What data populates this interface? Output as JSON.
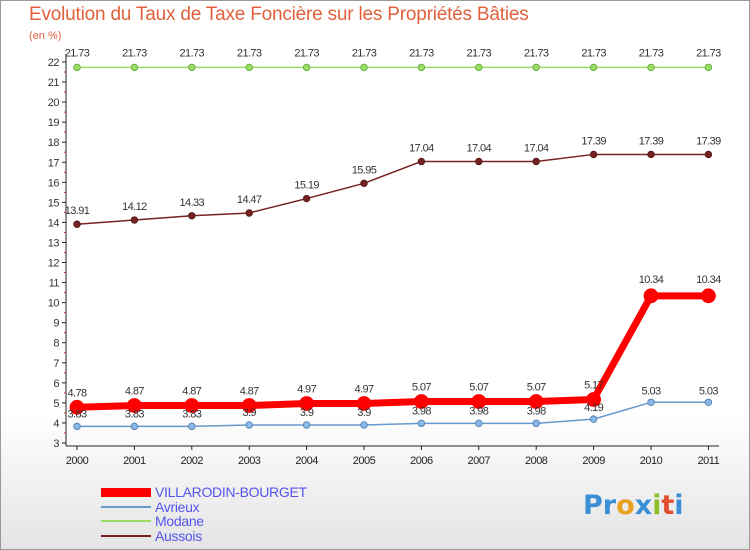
{
  "title": "Evolution du Taux de Taxe Foncière sur les Propriétés Bâties",
  "unit_label": "(en %)",
  "logo": {
    "text": "Proxiti",
    "letters": [
      {
        "char": "P",
        "color": "#3a8fd6"
      },
      {
        "char": "r",
        "color": "#3a8fd6"
      },
      {
        "char": "o",
        "color": "#e8a020"
      },
      {
        "char": "x",
        "color": "#3a8fd6"
      },
      {
        "char": "i",
        "color": "#8fbf2a"
      },
      {
        "char": "t",
        "color": "#e05030"
      },
      {
        "char": "i",
        "color": "#3a8fd6"
      }
    ]
  },
  "chart_data": {
    "type": "line",
    "title": "Evolution du Taux de Taxe Foncière sur les Propriétés Bâties",
    "ylabel": "(en %)",
    "x": [
      "2000",
      "2001",
      "2002",
      "2003",
      "2004",
      "2005",
      "2006",
      "2007",
      "2008",
      "2009",
      "2010",
      "2011"
    ],
    "ylim": [
      3,
      22
    ],
    "yticks": [
      3,
      4,
      5,
      6,
      7,
      8,
      9,
      10,
      11,
      12,
      13,
      14,
      15,
      16,
      17,
      18,
      19,
      20,
      21,
      22
    ],
    "grid": false,
    "legend_position": "bottom-left",
    "series": [
      {
        "name": "VILLARODIN-BOURGET",
        "color": "#ff0000",
        "values": [
          4.78,
          4.87,
          4.87,
          4.87,
          4.97,
          4.97,
          5.07,
          5.07,
          5.07,
          5.17,
          10.34,
          10.34
        ]
      },
      {
        "name": "Avrieux",
        "color": "#6699cc",
        "values": [
          3.83,
          3.83,
          3.83,
          3.9,
          3.9,
          3.9,
          3.98,
          3.98,
          3.98,
          4.19,
          5.03,
          5.03
        ]
      },
      {
        "name": "Modane",
        "color": "#99dd66",
        "values": [
          21.73,
          21.73,
          21.73,
          21.73,
          21.73,
          21.73,
          21.73,
          21.73,
          21.73,
          21.73,
          21.73,
          21.73
        ]
      },
      {
        "name": "Aussois",
        "color": "#772222",
        "values": [
          13.91,
          14.12,
          14.33,
          14.47,
          15.19,
          15.95,
          17.04,
          17.04,
          17.04,
          17.39,
          17.39,
          17.39
        ]
      }
    ],
    "data_labels": [
      {
        "series": "VILLARODIN-BOURGET",
        "texts": [
          "4.78",
          "4.87",
          "4.87",
          "4.87",
          "4.97",
          "4.97",
          "5.07",
          "5.07",
          "5.07",
          "5.17",
          "10.34",
          "10.34"
        ]
      },
      {
        "series": "Avrieux",
        "texts": [
          "3.83",
          "3.83",
          "3.83",
          "3.9",
          "3.9",
          "3.9",
          "3.98",
          "3.98",
          "3.98",
          "4.19",
          "5.03",
          "5.03"
        ]
      },
      {
        "series": "Modane",
        "texts": [
          "21.73",
          "21.73",
          "21.73",
          "21.73",
          "21.73",
          "21.73",
          "21.73",
          "21.73",
          "21.73",
          "21.73",
          "21.73",
          "21.73"
        ]
      },
      {
        "series": "Aussois",
        "texts": [
          "13.91",
          "14.12",
          "14.33",
          "14.47",
          "15.19",
          "15.95",
          "17.04",
          "17.04",
          "17.04",
          "17.39",
          "17.39",
          "17.39"
        ]
      }
    ]
  }
}
